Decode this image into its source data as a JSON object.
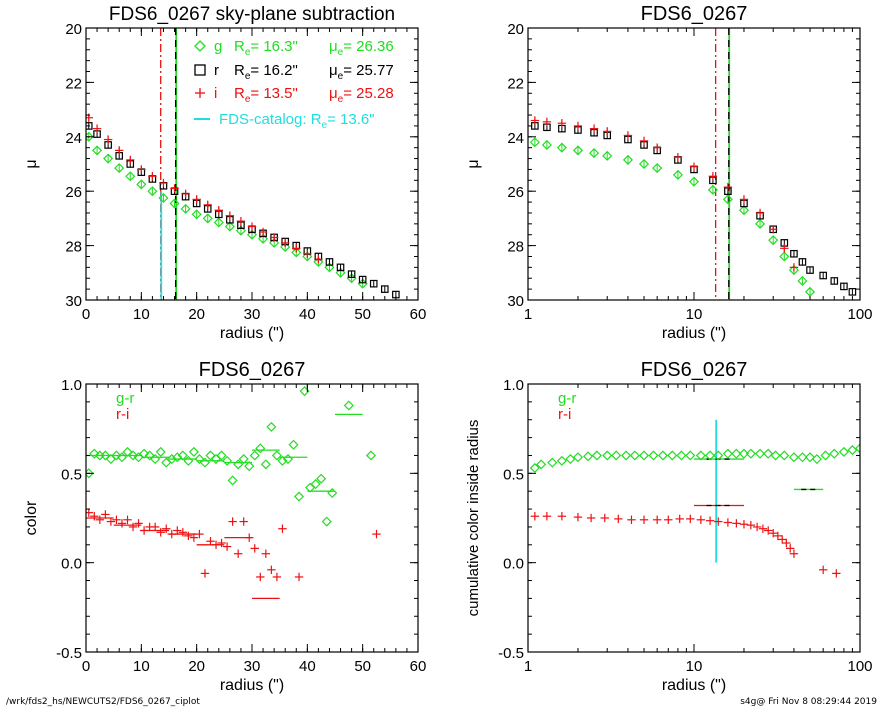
{
  "footer": {
    "left": "/wrk/fds2_hs/NEWCUTS2/FDS6_0267_ciplot",
    "right": "s4g@  Fri Nov  8 08:29:44 2019"
  },
  "colors": {
    "g": "#22dd22",
    "r": "#000000",
    "i": "#ee1111",
    "catalog": "#22dddd"
  },
  "chart_data": [
    {
      "type": "scatter",
      "title": "FDS6_0267 sky-plane subtraction",
      "xlabel": "radius (\")",
      "ylabel": "μ",
      "xlim": [
        0,
        60
      ],
      "ylim": [
        30,
        20
      ],
      "xticks": [
        0,
        10,
        20,
        30,
        40,
        50,
        60
      ],
      "yticks": [
        20,
        22,
        24,
        26,
        28,
        30
      ],
      "x_scale": "linear",
      "legend": {
        "placement": "top-right",
        "entries": [
          {
            "band": "g",
            "symbol": "diamond",
            "color": "#22dd22",
            "re_label": "R",
            "re_sub": "e",
            "re_value": "=  16.3\"",
            "mu_label": "μ",
            "mu_sub": "e",
            "mu_value": "= 26.36"
          },
          {
            "band": "r",
            "symbol": "square",
            "color": "#000000",
            "re_label": "R",
            "re_sub": "e",
            "re_value": "=  16.2\"",
            "mu_label": "μ",
            "mu_sub": "e",
            "mu_value": "= 25.77"
          },
          {
            "band": "i",
            "symbol": "plus",
            "color": "#ee1111",
            "re_label": "R",
            "re_sub": "e",
            "re_value": "=  13.5\"",
            "mu_label": "μ",
            "mu_sub": "e",
            "mu_value": "= 25.28"
          }
        ],
        "catalog": {
          "text": "FDS-catalog: R",
          "sub": "e",
          "value": "=  13.6\""
        }
      },
      "vlines": [
        {
          "x": 13.5,
          "color": "#ee1111",
          "style": "dashdot",
          "full": true
        },
        {
          "x": 16.3,
          "color": "#22dd22",
          "style": "solid",
          "full": true
        },
        {
          "x": 16.2,
          "color": "#000000",
          "style": "dashed",
          "full": true
        },
        {
          "x": 13.6,
          "color": "#22dddd",
          "style": "solid",
          "full": false,
          "from": 26.0
        }
      ],
      "series": [
        {
          "band": "g",
          "marker": "diamond",
          "color": "#22dd22",
          "err": 0.15,
          "x": [
            0.5,
            2,
            4,
            6,
            8,
            10,
            12,
            14,
            16,
            18,
            20,
            22,
            24,
            26,
            28,
            30,
            32,
            34,
            36,
            38,
            40,
            42,
            44,
            46,
            48,
            50
          ],
          "y": [
            24.0,
            24.5,
            24.8,
            25.15,
            25.45,
            25.75,
            26.0,
            26.25,
            26.45,
            26.65,
            26.85,
            27.0,
            27.15,
            27.3,
            27.45,
            27.6,
            27.75,
            27.9,
            28.05,
            28.25,
            28.4,
            28.6,
            28.8,
            29.0,
            29.2,
            29.4
          ]
        },
        {
          "band": "r",
          "marker": "square",
          "color": "#000000",
          "err": 0.12,
          "x": [
            0.5,
            2,
            4,
            6,
            8,
            10,
            12,
            14,
            16,
            18,
            20,
            22,
            24,
            26,
            28,
            30,
            32,
            34,
            36,
            38,
            40,
            42,
            44,
            46,
            48,
            50,
            52,
            54,
            56
          ],
          "y": [
            23.6,
            23.9,
            24.3,
            24.7,
            25.0,
            25.3,
            25.55,
            25.8,
            26.0,
            26.2,
            26.45,
            26.65,
            26.85,
            27.05,
            27.25,
            27.4,
            27.55,
            27.7,
            27.85,
            28.0,
            28.2,
            28.4,
            28.6,
            28.8,
            29.05,
            29.25,
            29.4,
            29.6,
            29.8
          ]
        },
        {
          "band": "i",
          "marker": "plus",
          "color": "#ee1111",
          "err": 0.12,
          "x": [
            0.5,
            2,
            4,
            6,
            8,
            10,
            12,
            14,
            16,
            18,
            20,
            22,
            24,
            26,
            28,
            30,
            32,
            34,
            36,
            38,
            40,
            42
          ],
          "y": [
            23.3,
            23.7,
            24.1,
            24.5,
            24.85,
            25.2,
            25.45,
            25.7,
            25.9,
            26.1,
            26.3,
            26.5,
            26.7,
            26.9,
            27.1,
            27.3,
            27.5,
            27.7,
            27.9,
            28.1,
            28.3,
            28.5
          ]
        }
      ]
    },
    {
      "type": "scatter",
      "title": "FDS6_0267",
      "xlabel": "radius (\")",
      "ylabel": "μ",
      "xlim": [
        1,
        100
      ],
      "ylim": [
        30,
        20
      ],
      "xticks": [
        1,
        10,
        100
      ],
      "yticks": [
        20,
        22,
        24,
        26,
        28,
        30
      ],
      "x_scale": "log",
      "vlines": [
        {
          "x": 13.5,
          "color": "#ee1111",
          "style": "dashdot",
          "full": true
        },
        {
          "x": 16.3,
          "color": "#22dd22",
          "style": "solid",
          "full": true
        },
        {
          "x": 16.2,
          "color": "#000000",
          "style": "dashed",
          "full": true
        }
      ],
      "series": [
        {
          "band": "g",
          "marker": "diamond",
          "color": "#22dd22",
          "err": 0.15,
          "x": [
            1.1,
            1.3,
            1.6,
            2,
            2.5,
            3,
            4,
            5,
            6,
            8,
            10,
            13,
            16,
            20,
            25,
            30,
            35,
            40,
            45,
            50
          ],
          "y": [
            24.2,
            24.3,
            24.4,
            24.5,
            24.6,
            24.7,
            24.85,
            25.0,
            25.15,
            25.4,
            25.65,
            25.95,
            26.3,
            26.7,
            27.2,
            27.8,
            28.4,
            28.9,
            29.3,
            29.7
          ]
        },
        {
          "band": "r",
          "marker": "square",
          "color": "#000000",
          "err": 0.12,
          "x": [
            1.1,
            1.3,
            1.6,
            2,
            2.5,
            3,
            4,
            5,
            6,
            8,
            10,
            13,
            16,
            20,
            25,
            30,
            35,
            40,
            45,
            50,
            60,
            70,
            80,
            90
          ],
          "y": [
            23.6,
            23.65,
            23.7,
            23.75,
            23.85,
            23.95,
            24.1,
            24.3,
            24.5,
            24.85,
            25.2,
            25.6,
            26.0,
            26.45,
            26.9,
            27.4,
            27.9,
            28.3,
            28.6,
            28.9,
            29.1,
            29.3,
            29.5,
            29.7
          ]
        },
        {
          "band": "i",
          "marker": "plus",
          "color": "#ee1111",
          "err": 0.12,
          "x": [
            1.1,
            1.3,
            1.6,
            2,
            2.5,
            3,
            4,
            5,
            6,
            8,
            10,
            13,
            16,
            20,
            25,
            30,
            35,
            40
          ],
          "y": [
            23.4,
            23.45,
            23.5,
            23.6,
            23.7,
            23.8,
            23.95,
            24.15,
            24.4,
            24.75,
            25.1,
            25.45,
            25.85,
            26.3,
            26.8,
            27.4,
            28.1,
            28.8
          ]
        }
      ]
    },
    {
      "type": "scatter",
      "title": "FDS6_0267",
      "xlabel": "radius (\")",
      "ylabel": "color",
      "xlim": [
        0,
        60
      ],
      "ylim": [
        -0.5,
        1.0
      ],
      "xticks": [
        0,
        10,
        20,
        30,
        40,
        50,
        60
      ],
      "yticks": [
        -0.5,
        0.0,
        0.5,
        1.0
      ],
      "ytick_labels": [
        "-0.5",
        "0.0",
        "0.5",
        "1.0"
      ],
      "x_scale": "linear",
      "legend": {
        "placement": "top-left",
        "entries": [
          {
            "label": "g-r",
            "color": "#22dd22"
          },
          {
            "label": "r-i",
            "color": "#ee1111"
          }
        ]
      },
      "series": [
        {
          "name": "g-r",
          "marker": "diamond",
          "color": "#22dd22",
          "x": [
            0.5,
            1.5,
            2.5,
            3.5,
            4.5,
            5.5,
            6.5,
            7.5,
            8.5,
            9.5,
            10.5,
            11.5,
            12.5,
            13.5,
            14.5,
            15.5,
            16.5,
            17.5,
            18.5,
            19.5,
            20.5,
            21.5,
            22.5,
            23.5,
            24.5,
            25.5,
            26.5,
            27.5,
            28.5,
            29.5,
            30.5,
            31.5,
            32.5,
            33.5,
            34.5,
            35.5,
            36.5,
            37.5,
            38.5,
            39.5,
            40.5,
            41.5,
            42.5,
            43.5,
            44.5,
            47.5,
            51.5
          ],
          "y": [
            0.5,
            0.61,
            0.6,
            0.6,
            0.58,
            0.6,
            0.59,
            0.62,
            0.6,
            0.59,
            0.61,
            0.6,
            0.58,
            0.62,
            0.56,
            0.58,
            0.59,
            0.6,
            0.57,
            0.62,
            0.58,
            0.56,
            0.6,
            0.58,
            0.6,
            0.57,
            0.46,
            0.55,
            0.58,
            0.54,
            0.6,
            0.64,
            0.55,
            0.76,
            0.6,
            0.57,
            0.58,
            0.66,
            0.37,
            0.96,
            0.42,
            0.44,
            0.47,
            0.23,
            0.39,
            0.88,
            0.6
          ]
        },
        {
          "name": "r-i",
          "marker": "plus",
          "color": "#ee1111",
          "x": [
            0.5,
            1.5,
            2.5,
            3.5,
            4.5,
            5.5,
            6.5,
            7.5,
            8.5,
            9.5,
            10.5,
            11.5,
            12.5,
            13.5,
            14.5,
            15.5,
            16.5,
            17.5,
            18.5,
            19.5,
            20.5,
            21.5,
            22.5,
            23.5,
            24.5,
            25.5,
            26.5,
            27.5,
            28.5,
            29.5,
            30.5,
            31.5,
            32.5,
            33.5,
            34.5,
            35.5,
            38.5,
            52.5
          ],
          "y": [
            0.28,
            0.26,
            0.24,
            0.27,
            0.23,
            0.24,
            0.22,
            0.24,
            0.2,
            0.22,
            0.18,
            0.2,
            0.2,
            0.17,
            0.19,
            0.16,
            0.18,
            0.17,
            0.15,
            0.14,
            0.16,
            -0.06,
            0.12,
            0.1,
            0.11,
            0.09,
            0.23,
            0.05,
            0.23,
            0.14,
            0.08,
            -0.08,
            0.05,
            -0.04,
            -0.08,
            0.19,
            -0.08,
            0.16
          ]
        }
      ],
      "binned": [
        {
          "series": "g-r",
          "color": "#22dd22",
          "segments": [
            [
              0,
              5,
              0.6
            ],
            [
              5,
              10,
              0.6
            ],
            [
              10,
              15,
              0.59
            ],
            [
              15,
              20,
              0.58
            ],
            [
              20,
              25,
              0.57
            ],
            [
              25,
              30,
              0.56
            ],
            [
              30,
              35,
              0.63
            ],
            [
              35,
              40,
              0.59
            ],
            [
              40,
              45,
              0.4
            ],
            [
              45,
              50,
              0.83
            ]
          ]
        },
        {
          "series": "r-i",
          "color": "#ee1111",
          "segments": [
            [
              0,
              5,
              0.25
            ],
            [
              5,
              10,
              0.21
            ],
            [
              10,
              15,
              0.18
            ],
            [
              15,
              20,
              0.16
            ],
            [
              20,
              25,
              0.1
            ],
            [
              25,
              30,
              0.14
            ],
            [
              30,
              35,
              -0.2
            ]
          ]
        }
      ]
    },
    {
      "type": "scatter",
      "title": "FDS6_0267",
      "xlabel": "radius (\")",
      "ylabel": "cumulative color inside radius",
      "xlim": [
        1,
        100
      ],
      "ylim": [
        -0.5,
        1.0
      ],
      "xticks": [
        1,
        10,
        100
      ],
      "yticks": [
        -0.5,
        0.0,
        0.5,
        1.0
      ],
      "ytick_labels": [
        "-0.5",
        "0.0",
        "0.5",
        "1.0"
      ],
      "x_scale": "log",
      "legend": {
        "placement": "top-left",
        "entries": [
          {
            "label": "g-r",
            "color": "#22dd22"
          },
          {
            "label": "r-i",
            "color": "#ee1111"
          }
        ]
      },
      "vlines": [
        {
          "x": 13.6,
          "color": "#22dddd",
          "style": "solid",
          "from": 0.0,
          "to": 0.8
        }
      ],
      "series": [
        {
          "name": "g-r",
          "marker": "diamond",
          "color": "#22dd22",
          "x": [
            1.1,
            1.2,
            1.4,
            1.6,
            1.8,
            2,
            2.3,
            2.6,
            3,
            3.4,
            3.9,
            4.4,
            5,
            5.7,
            6.5,
            7.4,
            8.4,
            9.5,
            11,
            12.5,
            14,
            16,
            18,
            20,
            22,
            25,
            28,
            31,
            35,
            40,
            45,
            50,
            55,
            62,
            70,
            80,
            90,
            100
          ],
          "y": [
            0.53,
            0.55,
            0.56,
            0.57,
            0.58,
            0.59,
            0.595,
            0.6,
            0.6,
            0.6,
            0.6,
            0.6,
            0.6,
            0.6,
            0.6,
            0.6,
            0.6,
            0.6,
            0.6,
            0.6,
            0.6,
            0.61,
            0.61,
            0.61,
            0.61,
            0.61,
            0.61,
            0.6,
            0.6,
            0.59,
            0.59,
            0.59,
            0.58,
            0.6,
            0.61,
            0.62,
            0.63,
            0.64
          ]
        },
        {
          "name": "r-i",
          "marker": "plus",
          "color": "#ee1111",
          "x": [
            1.1,
            1.3,
            1.6,
            2,
            2.4,
            2.9,
            3.5,
            4.2,
            5,
            6,
            7,
            8.2,
            9.5,
            11,
            12.5,
            14,
            16,
            18,
            20,
            22,
            24,
            26,
            28,
            30,
            32,
            34,
            36,
            38,
            40,
            60,
            72
          ],
          "y": [
            0.26,
            0.26,
            0.26,
            0.255,
            0.25,
            0.25,
            0.245,
            0.24,
            0.24,
            0.24,
            0.24,
            0.245,
            0.245,
            0.24,
            0.235,
            0.23,
            0.225,
            0.22,
            0.215,
            0.21,
            0.2,
            0.19,
            0.18,
            0.165,
            0.15,
            0.13,
            0.11,
            0.08,
            0.05,
            -0.04,
            -0.06
          ]
        }
      ],
      "binned": [
        {
          "series": "g-r",
          "color": "#22dd22",
          "dashed": true,
          "segments": [
            [
              10,
              20,
              0.58
            ],
            [
              40,
              60,
              0.41
            ]
          ]
        },
        {
          "series": "r-i",
          "color": "#ee1111",
          "dashed": true,
          "segments": [
            [
              10,
              20,
              0.32
            ]
          ]
        }
      ]
    }
  ]
}
